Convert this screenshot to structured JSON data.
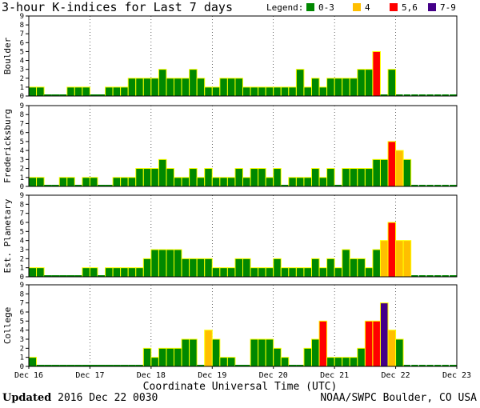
{
  "chart_data": {
    "type": "bar",
    "title": "3-hour K-indices for Last 7 days",
    "xlabel": "Coordinate Universal Time (UTC)",
    "ylabel": "",
    "ylim": [
      0,
      9
    ],
    "y_ticks": [
      "0",
      "1",
      "2",
      "3",
      "4",
      "5",
      "6",
      "7",
      "8",
      "9"
    ],
    "x_tick_labels": [
      "Dec 16",
      "Dec 17",
      "Dec 18",
      "Dec 19",
      "Dec 20",
      "Dec 21",
      "Dec 22",
      "Dec 23"
    ],
    "legend": {
      "label": "Legend:",
      "placement": "top-right",
      "entries": [
        {
          "label": "0-3",
          "color": "#008800"
        },
        {
          "label": "4",
          "color": "#ffbf00"
        },
        {
          "label": "5,6",
          "color": "#ff0000"
        },
        {
          "label": "7-9",
          "color": "#440088"
        }
      ]
    },
    "colors": {
      "0-3": "#008800",
      "4": "#ffbf00",
      "5,6": "#ff0000",
      "7-9": "#440088",
      "empty": "#008800"
    },
    "interval_hours": 3,
    "panels": [
      {
        "name": "Boulder",
        "values": [
          1,
          1,
          0,
          0,
          0,
          1,
          1,
          1,
          0,
          0,
          1,
          1,
          1,
          2,
          2,
          2,
          2,
          3,
          2,
          2,
          2,
          3,
          2,
          1,
          1,
          2,
          2,
          2,
          1,
          1,
          1,
          1,
          1,
          1,
          1,
          3,
          1,
          2,
          1,
          2,
          2,
          2,
          2,
          3,
          3,
          5,
          0,
          3,
          null,
          null,
          null,
          null,
          null,
          null,
          null,
          null
        ]
      },
      {
        "name": "Fredericksburg",
        "values": [
          1,
          1,
          0,
          0,
          1,
          1,
          0,
          1,
          1,
          0,
          0,
          1,
          1,
          1,
          2,
          2,
          2,
          3,
          2,
          1,
          1,
          2,
          1,
          2,
          1,
          1,
          1,
          2,
          1,
          2,
          2,
          1,
          2,
          0,
          1,
          1,
          1,
          2,
          1,
          2,
          0,
          2,
          2,
          2,
          2,
          3,
          3,
          5,
          4,
          3,
          null,
          null,
          null,
          null,
          null,
          null
        ]
      },
      {
        "name": "Est. Planetary",
        "values": [
          1,
          1,
          0,
          0,
          0,
          0,
          0,
          1,
          1,
          0,
          1,
          1,
          1,
          1,
          1,
          2,
          3,
          3,
          3,
          3,
          2,
          2,
          2,
          2,
          1,
          1,
          1,
          2,
          2,
          1,
          1,
          1,
          2,
          1,
          1,
          1,
          1,
          2,
          1,
          2,
          1,
          3,
          2,
          2,
          1,
          3,
          4,
          6,
          4,
          4,
          null,
          null,
          null,
          null,
          null,
          null
        ]
      },
      {
        "name": "College",
        "values": [
          1,
          0,
          0,
          0,
          0,
          0,
          0,
          0,
          0,
          0,
          0,
          0,
          0,
          0,
          0,
          2,
          1,
          2,
          2,
          2,
          3,
          3,
          0,
          4,
          3,
          1,
          1,
          0,
          0,
          3,
          3,
          3,
          2,
          1,
          0,
          0,
          2,
          3,
          5,
          1,
          1,
          1,
          1,
          2,
          5,
          5,
          7,
          4,
          3,
          null,
          null,
          null,
          null,
          null,
          null,
          null
        ]
      }
    ]
  },
  "footer": {
    "updated_label": "Updated",
    "updated_value": "2016 Dec 22 0030",
    "credit": "NOAA/SWPC Boulder, CO USA"
  }
}
